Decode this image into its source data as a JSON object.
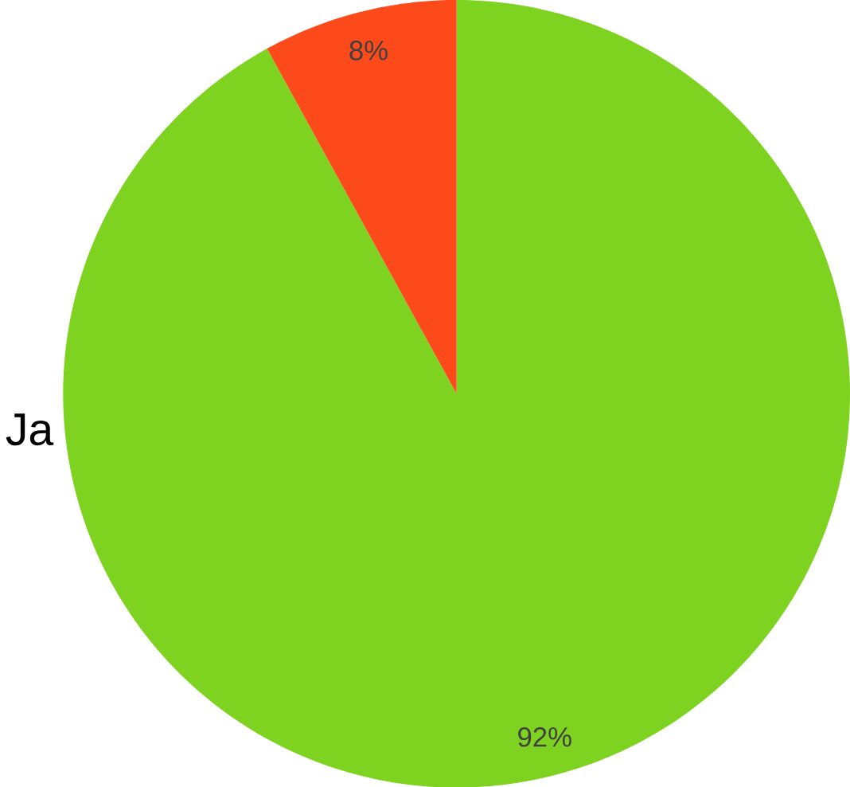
{
  "chart_data": {
    "type": "pie",
    "categories": [
      "Ja",
      null
    ],
    "values": [
      92,
      8
    ],
    "colors": [
      "#7ed321",
      "#fc4a1a"
    ],
    "value_labels": [
      "92%",
      "8%"
    ]
  }
}
